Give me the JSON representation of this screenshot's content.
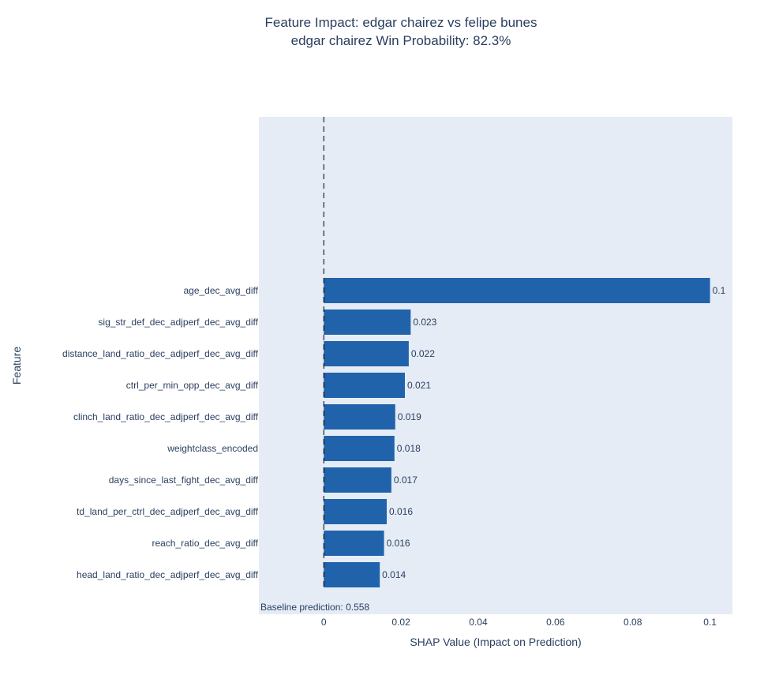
{
  "chart_data": {
    "type": "bar",
    "orientation": "horizontal",
    "title": "Feature Impact: edgar chairez vs felipe bunes",
    "subtitle": "edgar chairez Win Probability: 82.3%",
    "xlabel": "SHAP Value (Impact on Prediction)",
    "ylabel": "Feature",
    "categories": [
      "age_dec_avg_diff",
      "sig_str_def_dec_adjperf_dec_avg_diff",
      "distance_land_ratio_dec_adjperf_dec_avg_diff",
      "ctrl_per_min_opp_dec_avg_diff",
      "clinch_land_ratio_dec_adjperf_dec_avg_diff",
      "weightclass_encoded",
      "days_since_last_fight_dec_avg_diff",
      "td_land_per_ctrl_dec_adjperf_dec_avg_diff",
      "reach_ratio_dec_avg_diff",
      "head_land_ratio_dec_adjperf_dec_avg_diff"
    ],
    "values": [
      0.1,
      0.0225,
      0.022,
      0.021,
      0.0185,
      0.0183,
      0.0175,
      0.0163,
      0.0156,
      0.0145
    ],
    "value_labels": [
      "0.1",
      "0.023",
      "0.022",
      "0.021",
      "0.019",
      "0.018",
      "0.017",
      "0.016",
      "0.016",
      "0.014"
    ],
    "xlim": [
      -0.0168,
      0.1058
    ],
    "xticks": [
      0,
      0.02,
      0.04,
      0.06,
      0.08,
      0.1
    ],
    "xtick_labels": [
      "0",
      "0.02",
      "0.04",
      "0.06",
      "0.08",
      "0.1"
    ],
    "reference_line_x": 0,
    "annotation": "Baseline prediction: 0.558",
    "bar_color": "#2163ab",
    "plot_bg": "#e5ecf6",
    "text_color": "#2a3f5f",
    "grid": false
  }
}
